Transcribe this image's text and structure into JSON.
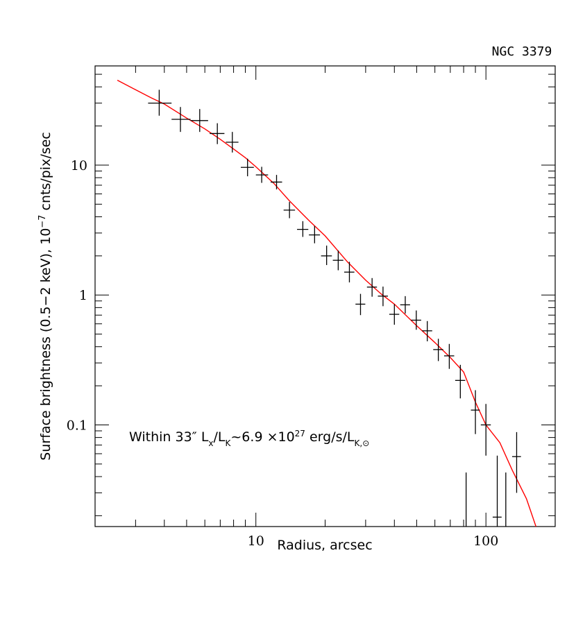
{
  "chart_data": {
    "type": "scatter",
    "title": "NGC 3379",
    "xlabel": "Radius, arcsec",
    "ylabel_parts": [
      "Surface brightness (0.5−2 keV), 10",
      "−7",
      " cnts/pix/sec"
    ],
    "xscale": "log",
    "yscale": "log",
    "xlim": [
      2.0,
      200.0
    ],
    "ylim": [
      0.0165,
      58.0
    ],
    "xticks": [
      {
        "v": 10,
        "label": "10"
      },
      {
        "v": 100,
        "label": "100"
      }
    ],
    "yticks": [
      {
        "v": 0.1,
        "label": "0.1"
      },
      {
        "v": 1,
        "label": "1"
      },
      {
        "v": 10,
        "label": "10"
      }
    ],
    "annotation": {
      "parts": [
        "Within 33″ L",
        "x",
        "/L",
        "K",
        "~6.9 ×10",
        "27",
        " erg/s/L",
        "K,⊙"
      ]
    },
    "model_color": "#ff0000",
    "series": [
      {
        "name": "data",
        "style": "crosses",
        "points": [
          {
            "x": 3.8,
            "xlo": 3.4,
            "xhi": 4.3,
            "y": 30,
            "ylo": 24,
            "yhi": 38
          },
          {
            "x": 4.7,
            "xlo": 4.3,
            "xhi": 5.2,
            "y": 22.5,
            "ylo": 18,
            "yhi": 28
          },
          {
            "x": 5.7,
            "xlo": 5.2,
            "xhi": 6.2,
            "y": 22,
            "ylo": 18,
            "yhi": 27
          },
          {
            "x": 6.8,
            "xlo": 6.3,
            "xhi": 7.3,
            "y": 17.5,
            "ylo": 14.5,
            "yhi": 21
          },
          {
            "x": 7.9,
            "xlo": 7.4,
            "xhi": 8.4,
            "y": 15,
            "ylo": 12.5,
            "yhi": 18
          },
          {
            "x": 9.2,
            "xlo": 8.6,
            "xhi": 9.8,
            "y": 9.6,
            "ylo": 8.2,
            "yhi": 11.2
          },
          {
            "x": 10.6,
            "xlo": 10.0,
            "xhi": 11.3,
            "y": 8.4,
            "ylo": 7.3,
            "yhi": 9.7
          },
          {
            "x": 12.3,
            "xlo": 11.6,
            "xhi": 13.0,
            "y": 7.4,
            "ylo": 6.5,
            "yhi": 8.4
          },
          {
            "x": 14.0,
            "xlo": 13.2,
            "xhi": 14.8,
            "y": 4.5,
            "ylo": 3.9,
            "yhi": 5.2
          },
          {
            "x": 16.0,
            "xlo": 15.1,
            "xhi": 16.9,
            "y": 3.2,
            "ylo": 2.8,
            "yhi": 3.7
          },
          {
            "x": 18.0,
            "xlo": 17.0,
            "xhi": 19.0,
            "y": 2.9,
            "ylo": 2.5,
            "yhi": 3.4
          },
          {
            "x": 20.3,
            "xlo": 19.2,
            "xhi": 21.4,
            "y": 2.0,
            "ylo": 1.7,
            "yhi": 2.4
          },
          {
            "x": 22.8,
            "xlo": 21.6,
            "xhi": 24.0,
            "y": 1.85,
            "ylo": 1.55,
            "yhi": 2.2
          },
          {
            "x": 25.5,
            "xlo": 24.2,
            "xhi": 26.8,
            "y": 1.5,
            "ylo": 1.25,
            "yhi": 1.8
          },
          {
            "x": 28.5,
            "xlo": 27.1,
            "xhi": 29.9,
            "y": 0.85,
            "ylo": 0.7,
            "yhi": 1.02
          },
          {
            "x": 32.0,
            "xlo": 30.4,
            "xhi": 33.6,
            "y": 1.15,
            "ylo": 0.97,
            "yhi": 1.35
          },
          {
            "x": 35.7,
            "xlo": 33.9,
            "xhi": 37.5,
            "y": 0.98,
            "ylo": 0.82,
            "yhi": 1.16
          },
          {
            "x": 40.0,
            "xlo": 38.0,
            "xhi": 42.0,
            "y": 0.71,
            "ylo": 0.59,
            "yhi": 0.85
          },
          {
            "x": 44.6,
            "xlo": 42.4,
            "xhi": 46.8,
            "y": 0.84,
            "ylo": 0.72,
            "yhi": 0.98
          },
          {
            "x": 49.8,
            "xlo": 47.3,
            "xhi": 52.3,
            "y": 0.64,
            "ylo": 0.54,
            "yhi": 0.76
          },
          {
            "x": 55.6,
            "xlo": 52.8,
            "xhi": 58.4,
            "y": 0.53,
            "ylo": 0.44,
            "yhi": 0.63
          },
          {
            "x": 62.1,
            "xlo": 59.0,
            "xhi": 65.2,
            "y": 0.38,
            "ylo": 0.31,
            "yhi": 0.46
          },
          {
            "x": 69.3,
            "xlo": 65.8,
            "xhi": 72.8,
            "y": 0.34,
            "ylo": 0.27,
            "yhi": 0.42
          },
          {
            "x": 77.4,
            "xlo": 73.5,
            "xhi": 81.3,
            "y": 0.22,
            "ylo": 0.16,
            "yhi": 0.29
          },
          {
            "x": 90.0,
            "xlo": 86.0,
            "xhi": 94.0,
            "y": 0.13,
            "ylo": 0.085,
            "yhi": 0.185
          },
          {
            "x": 100.0,
            "xlo": 95.0,
            "xhi": 105.0,
            "y": 0.1,
            "ylo": 0.058,
            "yhi": 0.145
          },
          {
            "x": 112.0,
            "xlo": 107.0,
            "xhi": 117.0,
            "y": 0.0195,
            "ylo": 0.0165,
            "yhi": 0.058
          },
          {
            "x": 136.0,
            "xlo": 130.0,
            "xhi": 142.0,
            "y": 0.057,
            "ylo": 0.03,
            "yhi": 0.088
          }
        ]
      },
      {
        "name": "upper-limit bars",
        "style": "vertical-bars",
        "points": [
          {
            "x": 82.0,
            "ylo": 0.0165,
            "yhi": 0.043
          },
          {
            "x": 122.0,
            "ylo": 0.0165,
            "yhi": 0.043
          }
        ]
      },
      {
        "name": "model",
        "style": "line",
        "x": [
          2.5,
          3.0,
          3.5,
          4.0,
          5.0,
          6.0,
          7.0,
          8.0,
          9.0,
          10.0,
          12.0,
          14.0,
          17.0,
          20.0,
          25.0,
          30.0,
          35.0,
          40.0,
          50.0,
          60.0,
          70.0,
          80.0,
          90.0,
          100.0,
          115.0,
          130.0,
          150.0,
          165.0
        ],
        "y": [
          45,
          38,
          33,
          29.5,
          23,
          19,
          15.8,
          13.3,
          11.4,
          9.7,
          7.2,
          5.3,
          3.75,
          2.85,
          1.8,
          1.3,
          1.02,
          0.85,
          0.58,
          0.43,
          0.33,
          0.255,
          0.15,
          0.1,
          0.073,
          0.045,
          0.027,
          0.0165
        ]
      }
    ]
  }
}
